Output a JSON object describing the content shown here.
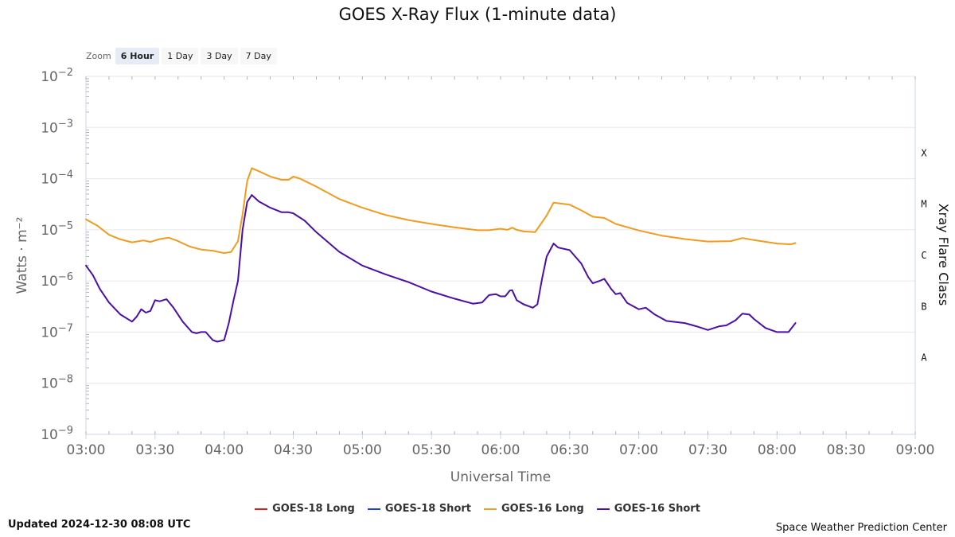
{
  "page": {
    "updated": "Updated 2024-12-30 08:08 UTC",
    "credit": "Space Weather Prediction Center"
  },
  "zoom": {
    "label": "Zoom",
    "options": [
      "6 Hour",
      "1 Day",
      "3 Day",
      "7 Day"
    ],
    "active": "6 Hour"
  },
  "colors": {
    "goes18_long": "#e31a1c",
    "goes18_short": "#1f3fd8",
    "goes16_long": "#f29b1d",
    "goes16_short": "#4b0fa8",
    "grid": "#e6e6e6",
    "axis": "#ccd6eb"
  },
  "chart_data": {
    "type": "line",
    "title": "GOES X-Ray Flux (1-minute data)",
    "xlabel": "Universal Time",
    "ylabel": "Watts · m⁻²",
    "y2label": "Xray Flare Class",
    "yscale": "log",
    "ylim": [
      1e-09,
      0.01
    ],
    "xlim": [
      "03:00",
      "09:00"
    ],
    "x_ticks": [
      "03:00",
      "03:30",
      "04:00",
      "04:30",
      "05:00",
      "05:30",
      "06:00",
      "06:30",
      "07:00",
      "07:30",
      "08:00",
      "08:30",
      "09:00"
    ],
    "y_ticks": [
      {
        "base": "10",
        "exp": "−2",
        "value": 0.01
      },
      {
        "base": "10",
        "exp": "−3",
        "value": 0.001
      },
      {
        "base": "10",
        "exp": "−4",
        "value": 0.0001
      },
      {
        "base": "10",
        "exp": "−5",
        "value": 1e-05
      },
      {
        "base": "10",
        "exp": "−6",
        "value": 1e-06
      },
      {
        "base": "10",
        "exp": "−7",
        "value": 1e-07
      },
      {
        "base": "10",
        "exp": "−8",
        "value": 1e-08
      },
      {
        "base": "10",
        "exp": "−9",
        "value": 1e-09
      }
    ],
    "flare_classes": [
      {
        "label": "X",
        "value": 0.000316
      },
      {
        "label": "M",
        "value": 3.16e-05
      },
      {
        "label": "C",
        "value": 3.16e-06
      },
      {
        "label": "B",
        "value": 3.16e-07
      },
      {
        "label": "A",
        "value": 3.16e-08
      }
    ],
    "legend": [
      "GOES-18 Long",
      "GOES-18 Short",
      "GOES-16 Long",
      "GOES-16 Short"
    ],
    "series": [
      {
        "name": "GOES-18 Long",
        "color_key": "goes18_long",
        "points": []
      },
      {
        "name": "GOES-18 Short",
        "color_key": "goes18_short",
        "points": []
      },
      {
        "name": "GOES-16 Long",
        "color_key": "goes16_long",
        "points": [
          [
            "03:00",
            1.6e-05
          ],
          [
            "03:05",
            1.2e-05
          ],
          [
            "03:10",
            8e-06
          ],
          [
            "03:15",
            6.5e-06
          ],
          [
            "03:20",
            5.7e-06
          ],
          [
            "03:25",
            6.2e-06
          ],
          [
            "03:28",
            5.8e-06
          ],
          [
            "03:32",
            6.6e-06
          ],
          [
            "03:36",
            7e-06
          ],
          [
            "03:40",
            6e-06
          ],
          [
            "03:45",
            4.7e-06
          ],
          [
            "03:50",
            4.1e-06
          ],
          [
            "03:55",
            3.9e-06
          ],
          [
            "04:00",
            3.5e-06
          ],
          [
            "04:03",
            3.7e-06
          ],
          [
            "04:06",
            6e-06
          ],
          [
            "04:08",
            2e-05
          ],
          [
            "04:10",
            9e-05
          ],
          [
            "04:12",
            0.00016
          ],
          [
            "04:15",
            0.00014
          ],
          [
            "04:20",
            0.00011
          ],
          [
            "04:25",
            9.5e-05
          ],
          [
            "04:28",
            9.5e-05
          ],
          [
            "04:30",
            0.00011
          ],
          [
            "04:33",
            0.0001
          ],
          [
            "04:40",
            7e-05
          ],
          [
            "04:50",
            4e-05
          ],
          [
            "05:00",
            2.7e-05
          ],
          [
            "05:10",
            1.95e-05
          ],
          [
            "05:20",
            1.55e-05
          ],
          [
            "05:30",
            1.3e-05
          ],
          [
            "05:40",
            1.12e-05
          ],
          [
            "05:50",
            9.8e-06
          ],
          [
            "05:55",
            9.8e-06
          ],
          [
            "06:00",
            1.05e-05
          ],
          [
            "06:03",
            1e-05
          ],
          [
            "06:05",
            1.1e-05
          ],
          [
            "06:07",
            1e-05
          ],
          [
            "06:10",
            9.3e-06
          ],
          [
            "06:15",
            9e-06
          ],
          [
            "06:20",
            1.9e-05
          ],
          [
            "06:23",
            3.4e-05
          ],
          [
            "06:30",
            3.1e-05
          ],
          [
            "06:35",
            2.4e-05
          ],
          [
            "06:40",
            1.8e-05
          ],
          [
            "06:45",
            1.7e-05
          ],
          [
            "06:50",
            1.3e-05
          ],
          [
            "07:00",
            9.7e-06
          ],
          [
            "07:10",
            7.7e-06
          ],
          [
            "07:20",
            6.6e-06
          ],
          [
            "07:30",
            5.9e-06
          ],
          [
            "07:40",
            6e-06
          ],
          [
            "07:45",
            6.9e-06
          ],
          [
            "07:50",
            6.3e-06
          ],
          [
            "08:00",
            5.4e-06
          ],
          [
            "08:06",
            5.2e-06
          ],
          [
            "08:08",
            5.5e-06
          ]
        ]
      },
      {
        "name": "GOES-16 Short",
        "color_key": "goes16_short",
        "points": [
          [
            "03:00",
            2e-06
          ],
          [
            "03:03",
            1.3e-06
          ],
          [
            "03:06",
            7e-07
          ],
          [
            "03:10",
            3.8e-07
          ],
          [
            "03:15",
            2.2e-07
          ],
          [
            "03:20",
            1.6e-07
          ],
          [
            "03:22",
            2e-07
          ],
          [
            "03:24",
            2.8e-07
          ],
          [
            "03:26",
            2.4e-07
          ],
          [
            "03:28",
            2.6e-07
          ],
          [
            "03:30",
            4.2e-07
          ],
          [
            "03:32",
            4e-07
          ],
          [
            "03:35",
            4.4e-07
          ],
          [
            "03:38",
            3e-07
          ],
          [
            "03:42",
            1.6e-07
          ],
          [
            "03:46",
            1e-07
          ],
          [
            "03:48",
            9.5e-08
          ],
          [
            "03:50",
            1e-07
          ],
          [
            "03:52",
            1e-07
          ],
          [
            "03:55",
            7e-08
          ],
          [
            "03:57",
            6.5e-08
          ],
          [
            "04:00",
            7e-08
          ],
          [
            "04:02",
            1.5e-07
          ],
          [
            "04:04",
            4e-07
          ],
          [
            "04:06",
            1e-06
          ],
          [
            "04:08",
            1e-05
          ],
          [
            "04:10",
            3.5e-05
          ],
          [
            "04:12",
            4.8e-05
          ],
          [
            "04:15",
            3.6e-05
          ],
          [
            "04:20",
            2.7e-05
          ],
          [
            "04:25",
            2.2e-05
          ],
          [
            "04:28",
            2.2e-05
          ],
          [
            "04:30",
            2.1e-05
          ],
          [
            "04:35",
            1.5e-05
          ],
          [
            "04:40",
            9e-06
          ],
          [
            "04:50",
            3.7e-06
          ],
          [
            "05:00",
            2e-06
          ],
          [
            "05:10",
            1.35e-06
          ],
          [
            "05:20",
            9.5e-07
          ],
          [
            "05:30",
            6.2e-07
          ],
          [
            "05:40",
            4.5e-07
          ],
          [
            "05:48",
            3.6e-07
          ],
          [
            "05:52",
            3.8e-07
          ],
          [
            "05:55",
            5.3e-07
          ],
          [
            "05:58",
            5.5e-07
          ],
          [
            "06:00",
            5e-07
          ],
          [
            "06:02",
            5e-07
          ],
          [
            "06:04",
            6.5e-07
          ],
          [
            "06:05",
            6.6e-07
          ],
          [
            "06:07",
            4.2e-07
          ],
          [
            "06:10",
            3.5e-07
          ],
          [
            "06:14",
            3e-07
          ],
          [
            "06:16",
            3.5e-07
          ],
          [
            "06:18",
            1.1e-06
          ],
          [
            "06:20",
            3e-06
          ],
          [
            "06:23",
            5.4e-06
          ],
          [
            "06:25",
            4.5e-06
          ],
          [
            "06:30",
            4e-06
          ],
          [
            "06:35",
            2.2e-06
          ],
          [
            "06:38",
            1.2e-06
          ],
          [
            "06:40",
            9e-07
          ],
          [
            "06:43",
            1e-06
          ],
          [
            "06:45",
            1.1e-06
          ],
          [
            "06:48",
            7e-07
          ],
          [
            "06:50",
            5.5e-07
          ],
          [
            "06:52",
            5.8e-07
          ],
          [
            "06:55",
            3.7e-07
          ],
          [
            "07:00",
            2.8e-07
          ],
          [
            "07:03",
            3e-07
          ],
          [
            "07:07",
            2.2e-07
          ],
          [
            "07:12",
            1.65e-07
          ],
          [
            "07:20",
            1.5e-07
          ],
          [
            "07:25",
            1.3e-07
          ],
          [
            "07:30",
            1.1e-07
          ],
          [
            "07:35",
            1.3e-07
          ],
          [
            "07:38",
            1.35e-07
          ],
          [
            "07:42",
            1.7e-07
          ],
          [
            "07:45",
            2.3e-07
          ],
          [
            "07:48",
            2.2e-07
          ],
          [
            "07:50",
            1.8e-07
          ],
          [
            "07:55",
            1.2e-07
          ],
          [
            "08:00",
            1e-07
          ],
          [
            "08:03",
            1e-07
          ],
          [
            "08:05",
            1e-07
          ],
          [
            "08:08",
            1.5e-07
          ]
        ]
      }
    ]
  }
}
